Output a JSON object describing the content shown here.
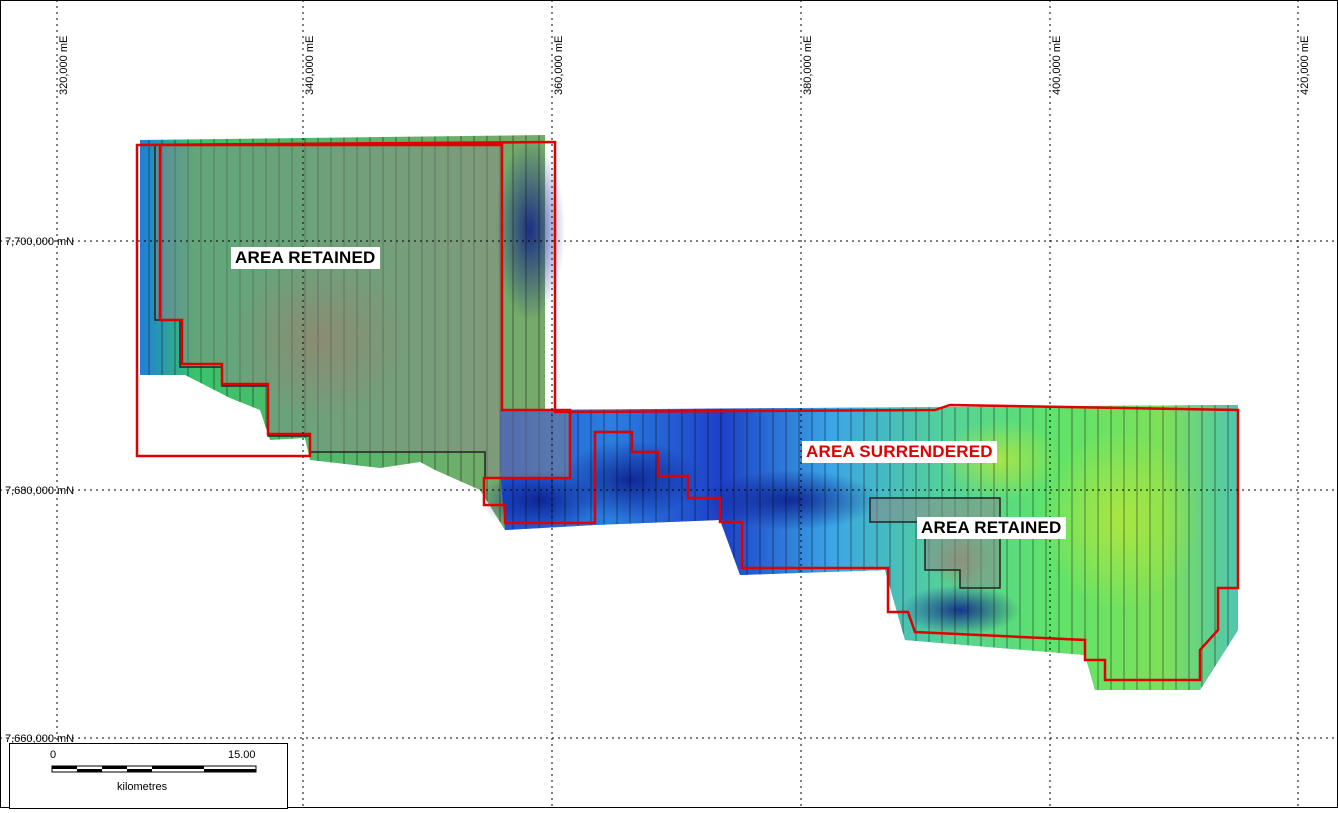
{
  "map": {
    "easting_labels": [
      "320,000 mE",
      "340,000 mE",
      "360,000 mE",
      "380,000 mE",
      "400,000 mE",
      "420,000 mE"
    ],
    "northing_labels": [
      "7,700,000 mN",
      "7,680,000 mN",
      "7,660,000 mN"
    ],
    "labels": {
      "retained_west": "AREA RETAINED",
      "surrendered": "AREA SURRENDERED",
      "retained_east": "AREA RETAINED"
    },
    "scale": {
      "start": "0",
      "end": "15.00",
      "unit": "kilometres"
    },
    "colors": {
      "boundary": "#e00000",
      "retained_fill": "#8a8a8a",
      "surrendered_text": "#e00000"
    }
  }
}
